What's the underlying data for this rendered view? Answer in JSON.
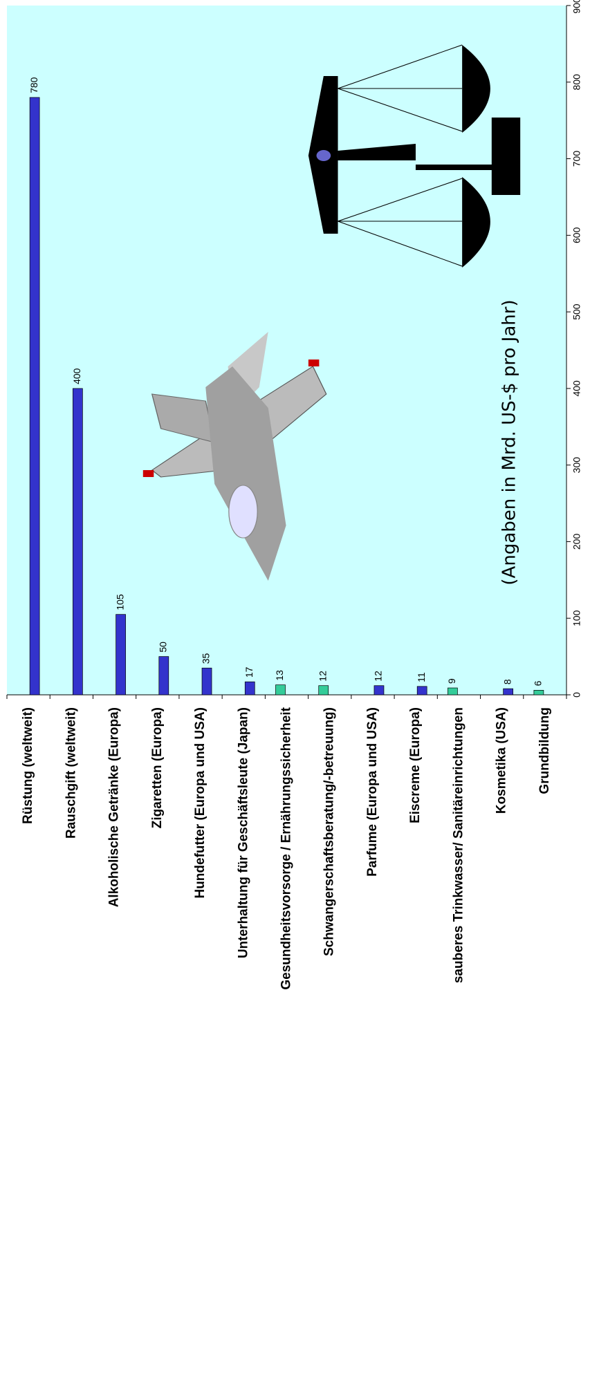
{
  "chart_data": {
    "type": "bar",
    "annotation": "(Angaben in Mrd. US-$ pro Jahr)",
    "categories": [
      "Rüstung (weltweit)",
      "Rauschgift (weltweit)",
      "Alkoholische Getränke (Europa)",
      "Zigaretten (Europa)",
      "Hundefutter (Europa und USA)",
      "Unterhaltung für Geschäftsleute (Japan)",
      "Gesundheitsvorsorge / Ernährungssicherheit",
      "Schwangerschaftsberatung/-betreuung)",
      "Parfume (Europa und USA)",
      "Eiscreme (Europa)",
      "sauberes Trinkwasser/ Sanitäreinrichtungen",
      "Kosmetika (USA)",
      "Grundbildung"
    ],
    "series": [
      {
        "color": "#3333cc",
        "values": [
          780,
          400,
          105,
          50,
          35,
          17,
          null,
          null,
          12,
          11,
          null,
          8,
          null
        ]
      },
      {
        "color": "#33cc99",
        "values": [
          null,
          null,
          null,
          null,
          null,
          null,
          13,
          12,
          null,
          null,
          9,
          null,
          6
        ]
      }
    ],
    "ylim": [
      0,
      900
    ],
    "yticks": [
      0,
      100,
      200,
      300,
      400,
      500,
      600,
      700,
      800,
      900
    ],
    "background": "#ccffff"
  }
}
